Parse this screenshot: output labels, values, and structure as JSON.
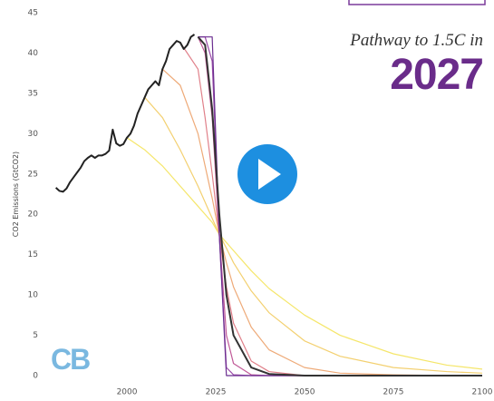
{
  "chart_data": {
    "type": "line",
    "title": "Pathway to 1.5C in",
    "subtitle": "2027",
    "y_label": "CO2 Emissions (GtCO2)",
    "logo": "CB",
    "xlim": [
      1978,
      2100
    ],
    "xticks": [
      2000,
      2025,
      2050,
      2075,
      2100
    ],
    "ylim": [
      0,
      45
    ],
    "yticks": [
      0,
      5,
      10,
      15,
      20,
      25,
      30,
      35,
      40,
      45
    ],
    "grid": false,
    "series": [
      {
        "color": "#f5e66a",
        "x": [
          2000,
          2005,
          2010,
          2015,
          2020,
          2022,
          2024,
          2026,
          2028,
          2030,
          2035,
          2040,
          2050,
          2060,
          2075,
          2090,
          2100
        ],
        "values": [
          29.5,
          28,
          26,
          23.5,
          21,
          20,
          19,
          17.5,
          16.5,
          15.5,
          13,
          10.8,
          7.5,
          5,
          2.7,
          1.3,
          0.8
        ]
      },
      {
        "color": "#f3d070",
        "x": [
          2000,
          2005,
          2010,
          2015,
          2020,
          2022,
          2024,
          2026,
          2028,
          2030,
          2035,
          2040,
          2050,
          2060,
          2075,
          2090,
          2100
        ],
        "values": [
          null,
          34.5,
          32,
          28,
          23.5,
          21.5,
          19.5,
          17.5,
          15.8,
          14,
          10.5,
          7.8,
          4.3,
          2.4,
          1,
          0.5,
          0.3
        ]
      },
      {
        "color": "#eeaa78",
        "x": [
          2000,
          2005,
          2010,
          2015,
          2020,
          2022,
          2024,
          2026,
          2028,
          2030,
          2035,
          2040,
          2050,
          2060,
          2075,
          2090,
          2100
        ],
        "values": [
          null,
          null,
          38,
          36,
          30,
          26,
          22,
          17.5,
          14,
          11,
          6,
          3.2,
          1,
          0.3,
          0.1,
          0,
          0
        ]
      },
      {
        "color": "#e0808a",
        "x": [
          2000,
          2005,
          2010,
          2015,
          2020,
          2022,
          2024,
          2026,
          2028,
          2030,
          2035,
          2040,
          2050,
          2060,
          2075,
          2090,
          2100
        ],
        "values": [
          null,
          null,
          null,
          41.3,
          38,
          32,
          25,
          17.5,
          11,
          6.5,
          1.8,
          0.5,
          0,
          0,
          0,
          0,
          0
        ]
      },
      {
        "color": "#c05a98",
        "x": [
          2000,
          2005,
          2010,
          2015,
          2020,
          2022,
          2024,
          2026,
          2028,
          2030,
          2035,
          2040,
          2050,
          2060,
          2075,
          2090,
          2100
        ],
        "values": [
          null,
          null,
          null,
          null,
          42,
          40,
          32,
          17.5,
          5,
          1.5,
          0.1,
          0,
          0,
          0,
          0,
          0,
          0
        ]
      },
      {
        "color": "#9a4aa8",
        "x": [
          2000,
          2005,
          2010,
          2015,
          2020,
          2022,
          2024,
          2026,
          2028,
          2030,
          2035,
          2040,
          2050,
          2060,
          2075,
          2090,
          2100
        ],
        "values": [
          null,
          null,
          null,
          null,
          42,
          42,
          39,
          17.5,
          1,
          0.1,
          0,
          0,
          0,
          0,
          0,
          0,
          0
        ]
      },
      {
        "color": "#6b2e90",
        "x": [
          2000,
          2005,
          2010,
          2015,
          2020,
          2022,
          2024,
          2026,
          2028,
          2030,
          2035,
          2040,
          2050,
          2060,
          2075,
          2090,
          2100
        ],
        "values": [
          null,
          null,
          null,
          null,
          42,
          42,
          42,
          17.5,
          0,
          0,
          0,
          0,
          0,
          0,
          0,
          0,
          0
        ]
      },
      {
        "color": "#333333",
        "x": [
          2020,
          2022,
          2024,
          2026,
          2028,
          2030,
          2035,
          2040,
          2050,
          2075,
          2100
        ],
        "values": [
          42,
          41,
          33,
          20,
          10,
          5,
          1,
          0.2,
          0,
          0,
          0
        ]
      },
      {
        "color": "#222222",
        "x": [
          1980,
          1981,
          1982,
          1983,
          1984,
          1985,
          1986,
          1987,
          1988,
          1989,
          1990,
          1991,
          1992,
          1993,
          1994,
          1995,
          1996,
          1997,
          1998,
          1999,
          2000,
          2001,
          2002,
          2003,
          2004,
          2005,
          2006,
          2007,
          2008,
          2009,
          2010,
          2011,
          2012,
          2013,
          2014,
          2015,
          2016,
          2017,
          2018,
          2019
        ],
        "values": [
          23.3,
          22.9,
          22.8,
          23.2,
          24,
          24.6,
          25.2,
          25.8,
          26.6,
          27,
          27.3,
          27,
          27.3,
          27.3,
          27.5,
          27.9,
          30.5,
          28.8,
          28.5,
          28.7,
          29.5,
          30,
          31,
          32.5,
          33.5,
          34.5,
          35.5,
          36,
          36.5,
          36,
          38,
          39,
          40.5,
          41,
          41.5,
          41.3,
          40.5,
          41,
          42,
          42.3
        ]
      }
    ]
  }
}
